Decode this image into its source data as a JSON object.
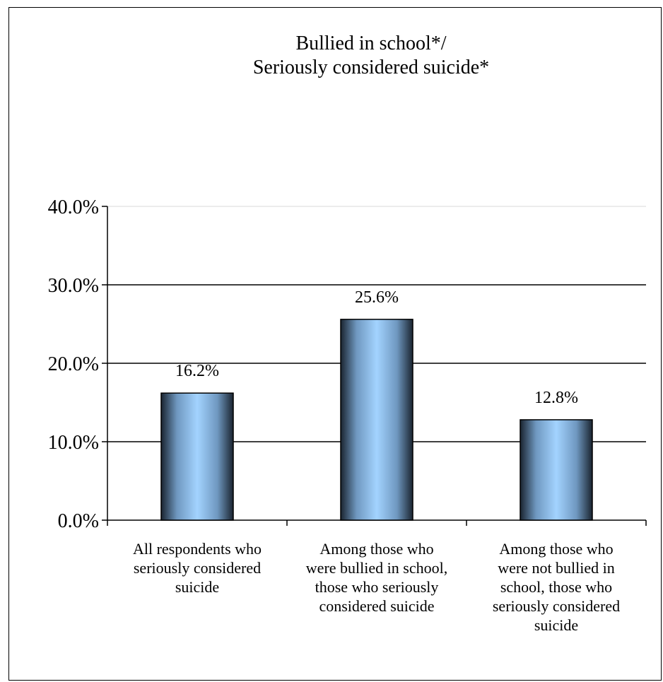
{
  "chart_data": {
    "type": "bar",
    "title": [
      "Bullied in school*/",
      "Seriously considered suicide*"
    ],
    "categories": [
      [
        "All respondents who",
        "seriously considered",
        "suicide"
      ],
      [
        "Among those who",
        "were bullied in school,",
        "those who seriously",
        "considered suicide"
      ],
      [
        "Among those who",
        "were not bullied in",
        "school, those who",
        "seriously considered",
        "suicide"
      ]
    ],
    "values": [
      16.2,
      25.6,
      12.8
    ],
    "data_labels": [
      "16.2%",
      "25.6%",
      "12.8%"
    ],
    "ylim": [
      0,
      40
    ],
    "yticks": [
      0,
      10,
      20,
      30,
      40
    ],
    "ytick_labels": [
      "0.0%",
      "10.0%",
      "20.0%",
      "30.0%",
      "40.0%"
    ],
    "grid": true,
    "legend": "none",
    "bar_colors": {
      "edge": "#1a2430",
      "center": "#a3d3ff",
      "mid": "#6f98c0"
    }
  }
}
